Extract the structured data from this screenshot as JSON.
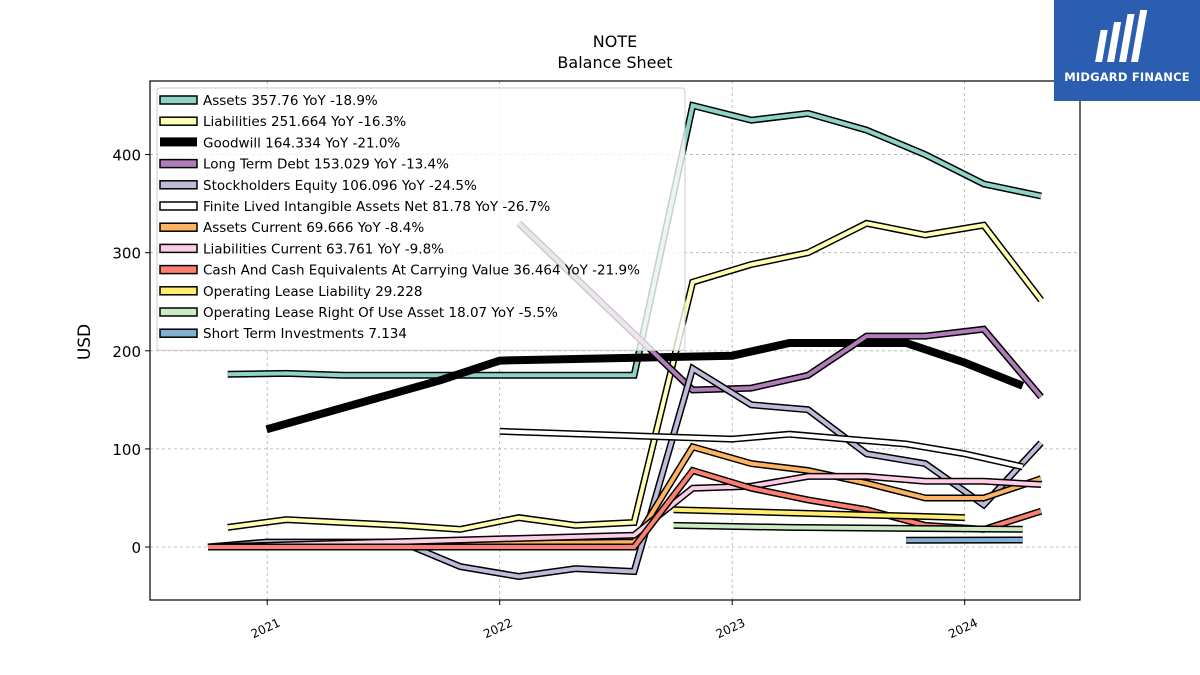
{
  "chart_data": {
    "type": "line",
    "title": "NOTE",
    "subtitle": "Balance  Sheet",
    "ylabel": "USD",
    "xlabel": "",
    "xlim": [
      "2020-07-01",
      "2024-06-30"
    ],
    "ylim": [
      -54,
      475
    ],
    "yticks": [
      0,
      100,
      200,
      300,
      400
    ],
    "xticks": [
      "2021",
      "2022",
      "2023",
      "2024"
    ],
    "grid": true,
    "legend_position": "top-left",
    "series": [
      {
        "name": "Assets  357.76 YoY -18.9%",
        "color": "#8dd3c7",
        "lw": 4,
        "points": [
          [
            "2020-10-31",
            176
          ],
          [
            "2021-01-31",
            177
          ],
          [
            "2021-04-30",
            175
          ],
          [
            "2021-07-31",
            175
          ],
          [
            "2021-10-31",
            175
          ],
          [
            "2022-01-31",
            175
          ],
          [
            "2022-04-30",
            175
          ],
          [
            "2022-07-31",
            175
          ],
          [
            "2022-10-31",
            450
          ],
          [
            "2023-01-31",
            435
          ],
          [
            "2023-04-30",
            442
          ],
          [
            "2023-07-31",
            425
          ],
          [
            "2023-10-31",
            400
          ],
          [
            "2024-01-31",
            370
          ],
          [
            "2024-04-30",
            357.76
          ]
        ]
      },
      {
        "name": "Liabilities  251.664 YoY -16.3%",
        "color": "#ffffb3",
        "lw": 4,
        "points": [
          [
            "2020-10-31",
            20
          ],
          [
            "2021-01-31",
            28
          ],
          [
            "2021-04-30",
            25
          ],
          [
            "2021-07-31",
            22
          ],
          [
            "2021-10-31",
            18
          ],
          [
            "2022-01-31",
            30
          ],
          [
            "2022-04-30",
            22
          ],
          [
            "2022-07-31",
            25
          ],
          [
            "2022-10-31",
            270
          ],
          [
            "2023-01-31",
            288
          ],
          [
            "2023-04-30",
            300
          ],
          [
            "2023-07-31",
            330
          ],
          [
            "2023-10-31",
            318
          ],
          [
            "2024-01-31",
            328
          ],
          [
            "2024-04-30",
            251.664
          ]
        ]
      },
      {
        "name": "Goodwill  164.334 YoY -21.0%",
        "color": "#000000",
        "lw": 8,
        "points": [
          [
            "2020-12-31",
            120
          ],
          [
            "2021-09-30",
            170
          ],
          [
            "2022-01-01",
            190
          ],
          [
            "2023-01-01",
            195
          ],
          [
            "2023-04-01",
            208
          ],
          [
            "2023-10-01",
            208
          ],
          [
            "2024-01-01",
            188
          ],
          [
            "2024-04-01",
            164.334
          ]
        ]
      },
      {
        "name": "Long Term Debt  153.029 YoY -13.4%",
        "color": "#bebada",
        "lw": 4,
        "draw": "#b07cba",
        "points": [
          [
            "2022-01-31",
            330
          ],
          [
            "2022-10-31",
            160
          ],
          [
            "2023-01-31",
            162
          ],
          [
            "2023-04-30",
            175
          ],
          [
            "2023-07-31",
            215
          ],
          [
            "2023-10-31",
            215
          ],
          [
            "2024-01-31",
            222
          ],
          [
            "2024-04-30",
            153.029
          ]
        ]
      },
      {
        "name": "Stockholders Equity  106.096 YoY -24.5%",
        "color": "#bebada",
        "lw": 4,
        "points": [
          [
            "2020-09-30",
            0
          ],
          [
            "2020-12-31",
            5
          ],
          [
            "2021-04-30",
            5
          ],
          [
            "2021-07-31",
            5
          ],
          [
            "2021-10-31",
            -20
          ],
          [
            "2022-01-31",
            -30
          ],
          [
            "2022-04-30",
            -22
          ],
          [
            "2022-07-31",
            -25
          ],
          [
            "2022-10-31",
            182
          ],
          [
            "2023-01-31",
            145
          ],
          [
            "2023-04-30",
            140
          ],
          [
            "2023-07-31",
            95
          ],
          [
            "2023-10-31",
            85
          ],
          [
            "2024-01-31",
            43
          ],
          [
            "2024-04-30",
            106.096
          ]
        ]
      },
      {
        "name": "Finite Lived Intangible Assets Net  81.78 YoY -26.7%",
        "color": "#ffffff",
        "lw": 4,
        "points": [
          [
            "2022-01-01",
            118
          ],
          [
            "2023-01-01",
            110
          ],
          [
            "2023-04-01",
            115
          ],
          [
            "2023-07-01",
            110
          ],
          [
            "2023-10-01",
            105
          ],
          [
            "2024-01-01",
            95
          ],
          [
            "2024-04-01",
            81.78
          ]
        ]
      },
      {
        "name": "Assets Current  69.666 YoY -8.4%",
        "color": "#fdb462",
        "lw": 4,
        "points": [
          [
            "2020-09-30",
            0
          ],
          [
            "2022-07-31",
            5
          ],
          [
            "2022-10-31",
            102
          ],
          [
            "2023-01-31",
            85
          ],
          [
            "2023-04-30",
            78
          ],
          [
            "2023-07-31",
            65
          ],
          [
            "2023-10-31",
            50
          ],
          [
            "2024-01-31",
            50
          ],
          [
            "2024-04-30",
            69.666
          ]
        ]
      },
      {
        "name": "Liabilities Current  63.761 YoY -9.8%",
        "color": "#fccde5",
        "lw": 4,
        "points": [
          [
            "2020-09-30",
            0
          ],
          [
            "2022-07-31",
            12
          ],
          [
            "2022-10-31",
            60
          ],
          [
            "2023-01-31",
            62
          ],
          [
            "2023-04-30",
            72
          ],
          [
            "2023-07-31",
            72
          ],
          [
            "2023-10-31",
            67
          ],
          [
            "2024-01-31",
            67
          ],
          [
            "2024-04-30",
            63.761
          ]
        ]
      },
      {
        "name": "Cash And Cash Equivalents At Carrying Value  36.464 YoY -21.9%",
        "color": "#fb8072",
        "lw": 4,
        "points": [
          [
            "2020-09-30",
            0
          ],
          [
            "2022-07-31",
            0
          ],
          [
            "2022-10-31",
            78
          ],
          [
            "2023-01-31",
            60
          ],
          [
            "2023-04-30",
            48
          ],
          [
            "2023-07-31",
            38
          ],
          [
            "2023-10-31",
            22
          ],
          [
            "2024-01-31",
            18
          ],
          [
            "2024-04-30",
            36.464
          ]
        ]
      },
      {
        "name": "Operating Lease Liability  29.228",
        "color": "#ffed6f",
        "lw": 4,
        "points": [
          [
            "2022-10-01",
            38
          ],
          [
            "2024-01-01",
            30
          ]
        ]
      },
      {
        "name": "Operating Lease Right Of Use Asset  18.07 YoY -5.5%",
        "color": "#ccebc5",
        "lw": 4,
        "points": [
          [
            "2022-10-01",
            22
          ],
          [
            "2023-04-01",
            20
          ],
          [
            "2024-04-01",
            18.07
          ]
        ]
      },
      {
        "name": "Short Term Investments  7.134",
        "color": "#80b1d3",
        "lw": 4,
        "points": [
          [
            "2023-10-01",
            7
          ],
          [
            "2024-04-01",
            7.134
          ]
        ]
      }
    ]
  },
  "logo": {
    "text": "MIDGARD FINANCE"
  }
}
